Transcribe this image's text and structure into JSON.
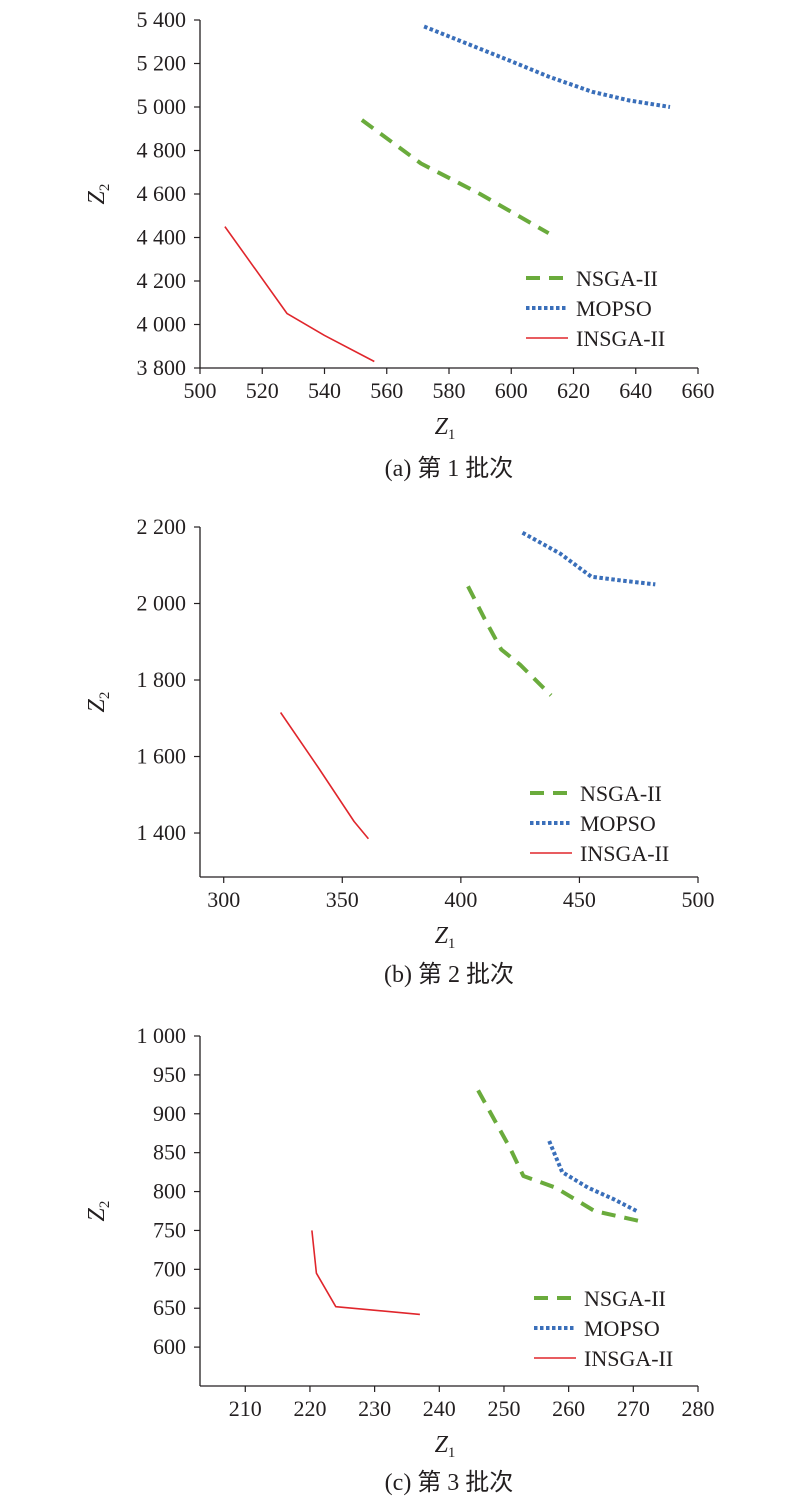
{
  "colors": {
    "NSGA-II": "#6aab3c",
    "MOPSO": "#3a6fba",
    "INSGA-II": "#e0262c",
    "axis": "#231f20"
  },
  "chart_data": [
    {
      "type": "line",
      "caption": "(a) 第 1 批次",
      "xlabel": "Z",
      "xlabel_sub": "1",
      "ylabel": "Z",
      "ylabel_sub": "2",
      "xlim": [
        500,
        660
      ],
      "ylim": [
        3800,
        5400
      ],
      "xticks": [
        500,
        520,
        540,
        560,
        580,
        600,
        620,
        640,
        660
      ],
      "xtick_labels": [
        "500",
        "520",
        "540",
        "560",
        "580",
        "600",
        "620",
        "640",
        "660"
      ],
      "yticks": [
        3800,
        4000,
        4200,
        4400,
        4600,
        4800,
        5000,
        5200,
        5400
      ],
      "ytick_labels": [
        "3 800",
        "4 000",
        "4 200",
        "4 400",
        "4 600",
        "4 800",
        "5 000",
        "5 200",
        "5 400"
      ],
      "legend": "right",
      "series": [
        {
          "name": "NSGA-II",
          "style": "dashed",
          "x": [
            552,
            571,
            590,
            612
          ],
          "y": [
            4940,
            4740,
            4600,
            4420
          ]
        },
        {
          "name": "MOPSO",
          "style": "dotted",
          "x": [
            572,
            586,
            600,
            612,
            626,
            638,
            651
          ],
          "y": [
            5370,
            5290,
            5210,
            5140,
            5070,
            5030,
            5000
          ]
        },
        {
          "name": "INSGA-II",
          "style": "solid",
          "x": [
            508,
            528,
            540,
            556
          ],
          "y": [
            4450,
            4050,
            3950,
            3830
          ]
        }
      ]
    },
    {
      "type": "line",
      "caption": "(b) 第 2 批次",
      "xlabel": "Z",
      "xlabel_sub": "1",
      "ylabel": "Z",
      "ylabel_sub": "2",
      "xlim": [
        290,
        500
      ],
      "ylim": [
        1285,
        2200
      ],
      "xticks": [
        300,
        350,
        400,
        450,
        500
      ],
      "xtick_labels": [
        "300",
        "350",
        "400",
        "450",
        "500"
      ],
      "yticks": [
        1400,
        1600,
        1800,
        2000,
        2200
      ],
      "ytick_labels": [
        "1 400",
        "1 600",
        "1 800",
        "2 000",
        "2 200"
      ],
      "legend": "right",
      "series": [
        {
          "name": "NSGA-II",
          "style": "dashed",
          "x": [
            403,
            410,
            417,
            425,
            438
          ],
          "y": [
            2045,
            1960,
            1880,
            1840,
            1760
          ]
        },
        {
          "name": "MOPSO",
          "style": "dotted",
          "x": [
            426,
            442,
            455,
            468,
            482
          ],
          "y": [
            2185,
            2130,
            2070,
            2060,
            2050
          ]
        },
        {
          "name": "INSGA-II",
          "style": "solid",
          "x": [
            324,
            340,
            355,
            361
          ],
          "y": [
            1715,
            1570,
            1430,
            1385
          ]
        }
      ]
    },
    {
      "type": "line",
      "caption": "(c) 第 3 批次",
      "xlabel": "Z",
      "xlabel_sub": "1",
      "ylabel": "Z",
      "ylabel_sub": "2",
      "xlim": [
        203,
        280
      ],
      "ylim": [
        550,
        1000
      ],
      "xticks": [
        210,
        220,
        230,
        240,
        250,
        260,
        270,
        280
      ],
      "xtick_labels": [
        "210",
        "220",
        "230",
        "240",
        "250",
        "260",
        "270",
        "280"
      ],
      "yticks": [
        600,
        650,
        700,
        750,
        800,
        850,
        900,
        950,
        1000
      ],
      "ytick_labels": [
        "600",
        "650",
        "700",
        "750",
        "800",
        "850",
        "900",
        "950",
        "1 000"
      ],
      "legend": "right",
      "series": [
        {
          "name": "NSGA-II",
          "style": "dashed",
          "x": [
            246,
            251,
            253,
            258,
            264,
            271
          ],
          "y": [
            930,
            855,
            820,
            805,
            775,
            762
          ]
        },
        {
          "name": "MOPSO",
          "style": "dotted",
          "x": [
            257,
            259,
            263,
            267,
            270.5
          ],
          "y": [
            865,
            825,
            805,
            790,
            775
          ]
        },
        {
          "name": "INSGA-II",
          "style": "solid",
          "x": [
            220.3,
            221,
            224,
            237
          ],
          "y": [
            750,
            695,
            652,
            642
          ]
        }
      ]
    }
  ]
}
